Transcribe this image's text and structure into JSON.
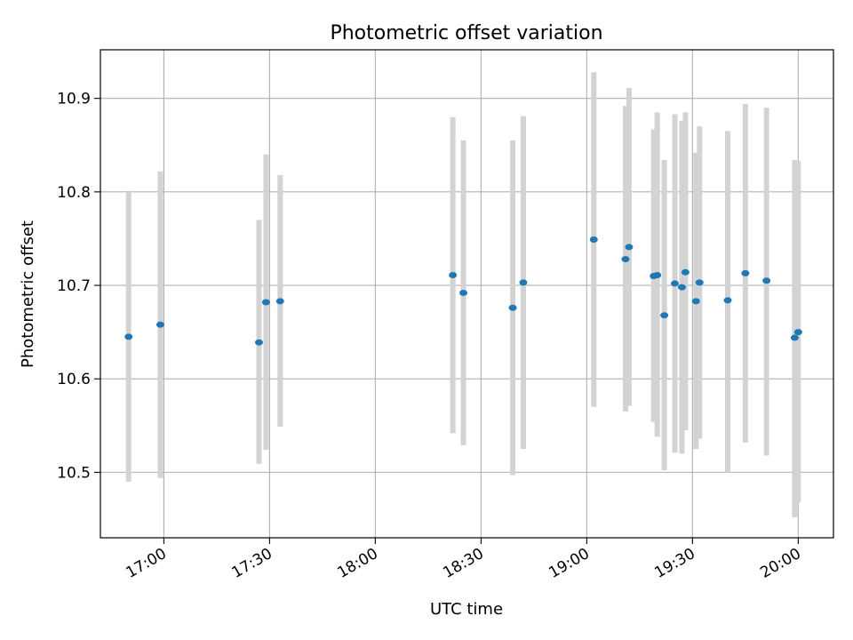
{
  "chart_data": {
    "type": "scatter",
    "title": "Photometric offset variation",
    "xlabel": "UTC time",
    "ylabel": "Photometric offset",
    "xlim": [
      "16:42",
      "20:10"
    ],
    "ylim": [
      10.43,
      10.952
    ],
    "x_ticks": [
      "17:00",
      "17:30",
      "18:00",
      "18:30",
      "19:00",
      "19:30",
      "20:00"
    ],
    "y_ticks": [
      10.5,
      10.6,
      10.7,
      10.8,
      10.9
    ],
    "y_tick_labels": [
      "10.5",
      "10.6",
      "10.7",
      "10.8",
      "10.9"
    ],
    "grid": true,
    "colors": {
      "points": "#1f77b4",
      "error_bars": "#d3d3d3",
      "grid": "#b0b0b0"
    },
    "points": [
      {
        "x": "16:50",
        "y": 10.645,
        "ylow": 10.49,
        "yhigh": 10.8
      },
      {
        "x": "16:59",
        "y": 10.658,
        "ylow": 10.494,
        "yhigh": 10.822
      },
      {
        "x": "17:27",
        "y": 10.639,
        "ylow": 10.509,
        "yhigh": 10.77
      },
      {
        "x": "17:29",
        "y": 10.682,
        "ylow": 10.524,
        "yhigh": 10.84
      },
      {
        "x": "17:33",
        "y": 10.683,
        "ylow": 10.549,
        "yhigh": 10.818
      },
      {
        "x": "18:22",
        "y": 10.711,
        "ylow": 10.542,
        "yhigh": 10.88
      },
      {
        "x": "18:25",
        "y": 10.692,
        "ylow": 10.529,
        "yhigh": 10.855
      },
      {
        "x": "18:39",
        "y": 10.676,
        "ylow": 10.497,
        "yhigh": 10.855
      },
      {
        "x": "18:42",
        "y": 10.703,
        "ylow": 10.525,
        "yhigh": 10.881
      },
      {
        "x": "19:02",
        "y": 10.749,
        "ylow": 10.57,
        "yhigh": 10.928
      },
      {
        "x": "19:11",
        "y": 10.728,
        "ylow": 10.565,
        "yhigh": 10.892
      },
      {
        "x": "19:12",
        "y": 10.741,
        "ylow": 10.571,
        "yhigh": 10.911
      },
      {
        "x": "19:19",
        "y": 10.71,
        "ylow": 10.554,
        "yhigh": 10.867
      },
      {
        "x": "19:20",
        "y": 10.711,
        "ylow": 10.538,
        "yhigh": 10.885
      },
      {
        "x": "19:22",
        "y": 10.668,
        "ylow": 10.502,
        "yhigh": 10.834
      },
      {
        "x": "19:25",
        "y": 10.702,
        "ylow": 10.521,
        "yhigh": 10.883
      },
      {
        "x": "19:27",
        "y": 10.698,
        "ylow": 10.52,
        "yhigh": 10.876
      },
      {
        "x": "19:28",
        "y": 10.714,
        "ylow": 10.545,
        "yhigh": 10.885
      },
      {
        "x": "19:31",
        "y": 10.683,
        "ylow": 10.525,
        "yhigh": 10.842
      },
      {
        "x": "19:32",
        "y": 10.703,
        "ylow": 10.536,
        "yhigh": 10.87
      },
      {
        "x": "19:40",
        "y": 10.684,
        "ylow": 10.5,
        "yhigh": 10.865
      },
      {
        "x": "19:45",
        "y": 10.713,
        "ylow": 10.532,
        "yhigh": 10.894
      },
      {
        "x": "19:51",
        "y": 10.705,
        "ylow": 10.518,
        "yhigh": 10.89
      },
      {
        "x": "19:59",
        "y": 10.644,
        "ylow": 10.452,
        "yhigh": 10.834
      },
      {
        "x": "20:00",
        "y": 10.65,
        "ylow": 10.468,
        "yhigh": 10.833
      }
    ]
  }
}
